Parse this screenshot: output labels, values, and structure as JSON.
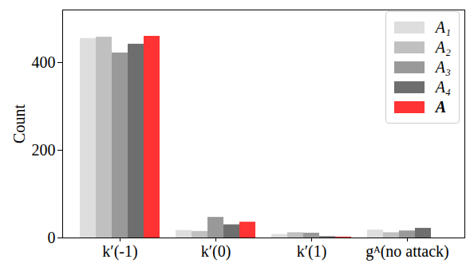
{
  "chart_data": {
    "type": "bar",
    "y_label": "Count",
    "categories": [
      "k′(-1)",
      "k′(0)",
      "k′(1)",
      "gᴬ(no attack)"
    ],
    "series": [
      {
        "name": "A₁",
        "color": "#dedede",
        "values": [
          455,
          17,
          8,
          18
        ]
      },
      {
        "name": "A₂",
        "color": "#c0c0c0",
        "values": [
          458,
          15,
          12,
          12
        ]
      },
      {
        "name": "A₃",
        "color": "#999999",
        "values": [
          422,
          47,
          11,
          16
        ]
      },
      {
        "name": "A₄",
        "color": "#6e6e6e",
        "values": [
          442,
          30,
          3,
          22
        ]
      },
      {
        "name": "A",
        "color": "#ff3333",
        "values": [
          460,
          36,
          2,
          0
        ]
      }
    ],
    "ylim": [
      0,
      520
    ],
    "yticks": [
      0,
      200,
      400
    ],
    "legend": "upper right",
    "grid": false
  }
}
